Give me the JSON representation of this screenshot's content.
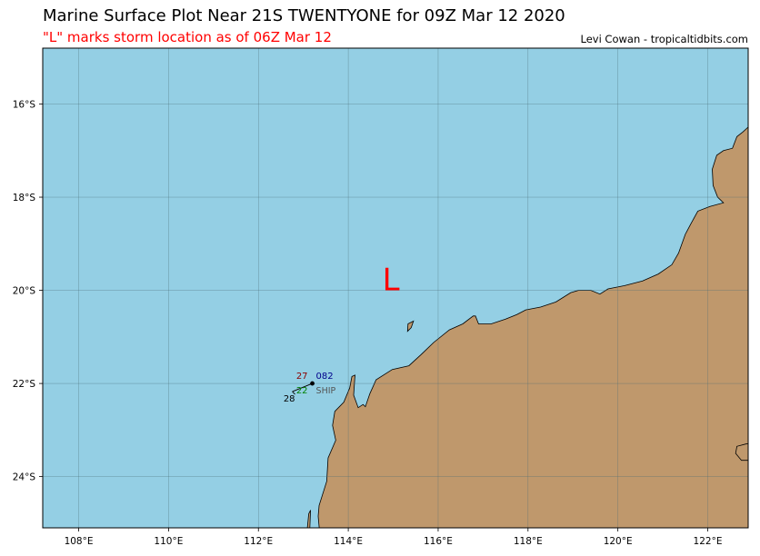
{
  "title": "Marine Surface Plot Near 21S TWENTYONE for 09Z Mar 12 2020",
  "subtitle": "\"L\" marks storm location as of 06Z Mar 12",
  "credit": "Levi Cowan - tropicaltidbits.com",
  "colors": {
    "ocean": "#94cfe4",
    "land": "#bf986c",
    "storm": "#ff0000",
    "grid": "#4a6a74"
  },
  "map_extent": {
    "lon_min": 107.2,
    "lon_max": 122.9,
    "lat_min": -25.1,
    "lat_max": -14.8
  },
  "lon_ticks": [
    {
      "lon": 108,
      "label": "108°E"
    },
    {
      "lon": 110,
      "label": "110°E"
    },
    {
      "lon": 112,
      "label": "112°E"
    },
    {
      "lon": 114,
      "label": "114°E"
    },
    {
      "lon": 116,
      "label": "116°E"
    },
    {
      "lon": 118,
      "label": "118°E"
    },
    {
      "lon": 120,
      "label": "120°E"
    },
    {
      "lon": 122,
      "label": "122°E"
    }
  ],
  "lat_ticks": [
    {
      "lat": -16,
      "label": "16°S"
    },
    {
      "lat": -18,
      "label": "18°S"
    },
    {
      "lat": -20,
      "label": "20°S"
    },
    {
      "lat": -22,
      "label": "22°S"
    },
    {
      "lat": -24,
      "label": "24°S"
    }
  ],
  "storm": {
    "label": "L",
    "lon": 114.95,
    "lat": -19.75
  },
  "ship_obs": {
    "lon": 113.2,
    "lat": -22.0,
    "temperature": "27",
    "pressure": "082",
    "dewpoint": "22",
    "sea_temp": "28",
    "id": "SHIP"
  }
}
